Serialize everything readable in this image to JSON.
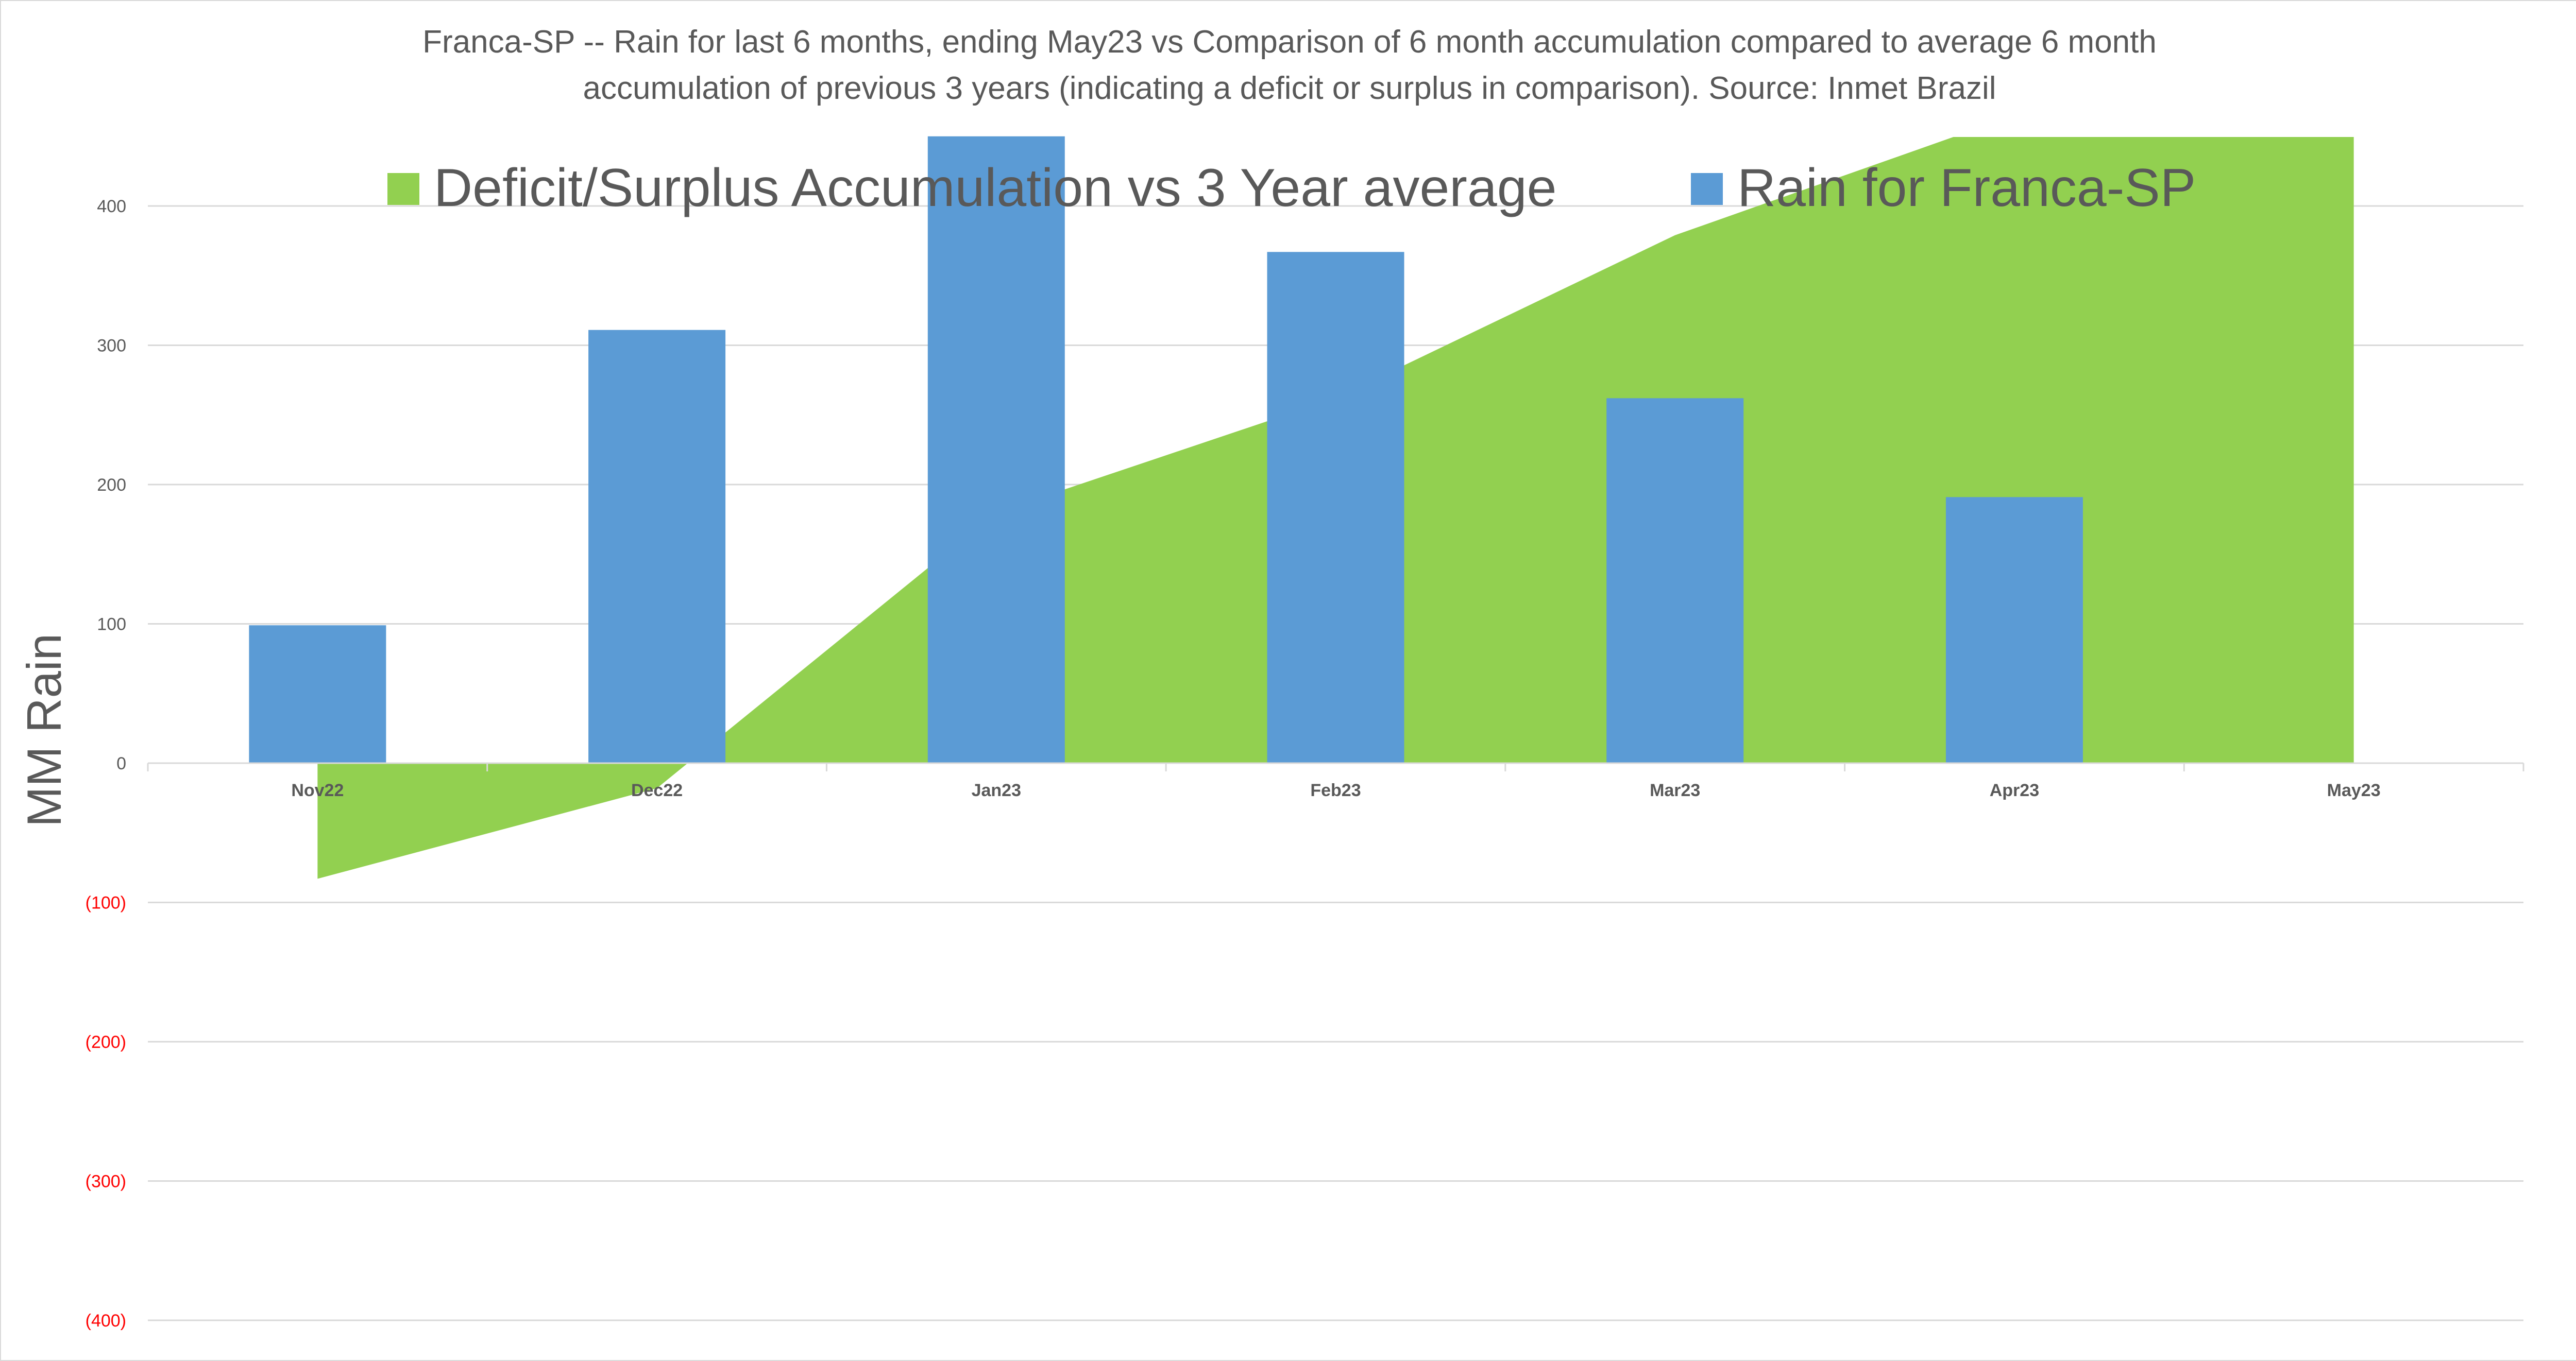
{
  "chart_data": {
    "type": "bar",
    "title_lines": [
      "Franca-SP -- Rain for last 6 months, ending May23  vs Comparison of 6 month accumulation compared to average 6 month",
      "accumulation of previous 3 years  (indicating a deficit or surplus in comparison). Source: Inmet Brazil"
    ],
    "ylabel": "MM Rain",
    "xlabel": "",
    "categories": [
      "Nov22",
      "Dec22",
      "Jan23",
      "Feb23",
      "Mar23",
      "Apr23",
      "May23"
    ],
    "ylim": [
      -400,
      450
    ],
    "yticks": [
      400,
      300,
      200,
      100,
      0,
      -100,
      -200,
      -300,
      -400
    ],
    "ytick_labels": [
      "400",
      "300",
      "200",
      "100",
      "0",
      "(100)",
      "(200)",
      "(300)",
      "(400)"
    ],
    "negative_tick_color": "#ff0000",
    "grid": true,
    "legend_position": "top",
    "series": [
      {
        "name": "Deficit/Surplus Accumulation vs 3 Year average",
        "type": "area",
        "color": "#92d050",
        "values": [
          -83,
          -18,
          180,
          262,
          379,
          465,
          452
        ]
      },
      {
        "name": "Rain for Franca-SP",
        "type": "bar",
        "color": "#5b9bd5",
        "values": [
          99,
          311,
          450,
          367,
          262,
          191,
          null
        ]
      }
    ]
  }
}
